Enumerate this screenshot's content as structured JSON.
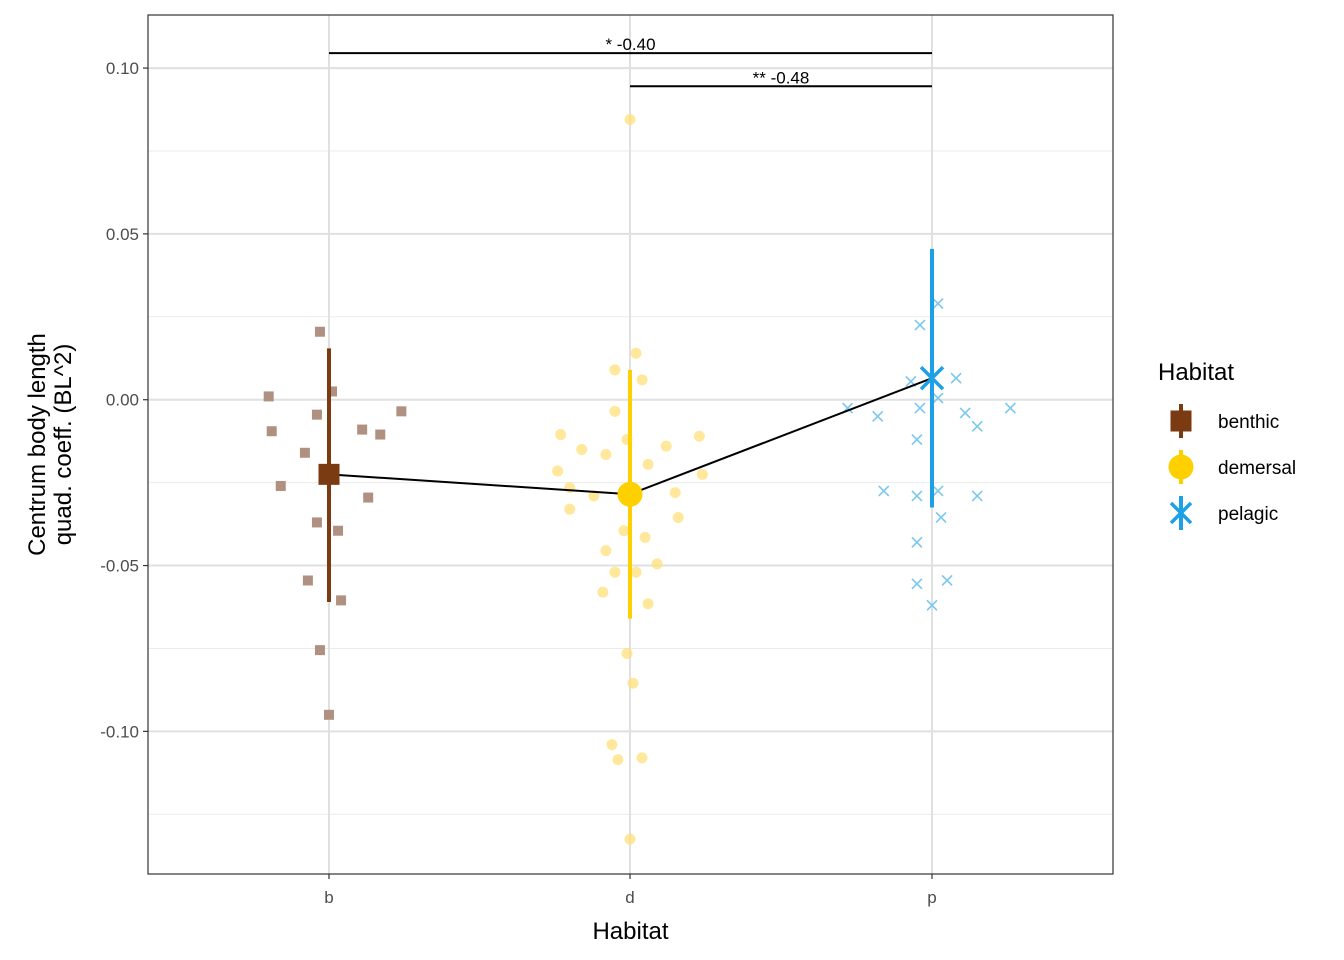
{
  "chart_data": {
    "type": "scatter",
    "title": "",
    "xlabel": "Habitat",
    "ylabel_lines": [
      "Centrum body length",
      "quad. coeff. (BL^2)"
    ],
    "categories": [
      "b",
      "d",
      "p"
    ],
    "ylim": [
      -0.143,
      0.116
    ],
    "y_ticks": [
      0.1,
      0.05,
      0.0,
      -0.05,
      -0.1
    ],
    "y_tick_labels": [
      "0.10",
      "0.05",
      "0.00",
      "-0.05",
      "-0.10"
    ],
    "grid": true,
    "legend": {
      "title": "Habitat",
      "position": "right",
      "entries": [
        "benthic",
        "demersal",
        "pelagic"
      ]
    },
    "colors": {
      "benthic": "#7a3a12",
      "demersal": "#ffd000",
      "pelagic": "#1ea0e6",
      "benthic_points": "#b09080",
      "demersal_points": "#ffe07a",
      "pelagic_points": "#7ac8ee"
    },
    "series": [
      {
        "name": "benthic",
        "category": "b",
        "marker": "square",
        "mean": -0.0225,
        "ci": [
          -0.061,
          0.0155
        ],
        "points": [
          [
            -0.2,
            0.001
          ],
          [
            -0.19,
            -0.0095
          ],
          [
            -0.08,
            -0.016
          ],
          [
            -0.16,
            -0.026
          ],
          [
            -0.04,
            -0.0045
          ],
          [
            -0.03,
            0.0205
          ],
          [
            0.01,
            0.0025
          ],
          [
            -0.04,
            -0.037
          ],
          [
            -0.07,
            -0.0545
          ],
          [
            0.03,
            -0.0395
          ],
          [
            0.11,
            -0.009
          ],
          [
            0.13,
            -0.0295
          ],
          [
            0.17,
            -0.0105
          ],
          [
            0.24,
            -0.0035
          ],
          [
            0.04,
            -0.0605
          ],
          [
            -0.03,
            -0.0755
          ],
          [
            0.0,
            -0.095
          ]
        ]
      },
      {
        "name": "demersal",
        "category": "d",
        "marker": "circle",
        "mean": -0.0285,
        "ci": [
          -0.066,
          0.009
        ],
        "points": [
          [
            0.0,
            0.0845
          ],
          [
            0.02,
            0.014
          ],
          [
            -0.05,
            0.009
          ],
          [
            0.04,
            0.006
          ],
          [
            -0.05,
            -0.0035
          ],
          [
            -0.23,
            -0.0105
          ],
          [
            0.23,
            -0.011
          ],
          [
            0.12,
            -0.014
          ],
          [
            -0.16,
            -0.015
          ],
          [
            -0.08,
            -0.0165
          ],
          [
            -0.01,
            -0.012
          ],
          [
            0.06,
            -0.0195
          ],
          [
            -0.24,
            -0.0215
          ],
          [
            0.24,
            -0.0225
          ],
          [
            -0.2,
            -0.0265
          ],
          [
            -0.12,
            -0.029
          ],
          [
            0.15,
            -0.028
          ],
          [
            -0.2,
            -0.033
          ],
          [
            0.16,
            -0.0355
          ],
          [
            -0.02,
            -0.0395
          ],
          [
            0.05,
            -0.0415
          ],
          [
            -0.08,
            -0.0455
          ],
          [
            0.09,
            -0.0495
          ],
          [
            -0.05,
            -0.052
          ],
          [
            0.02,
            -0.052
          ],
          [
            -0.09,
            -0.058
          ],
          [
            0.06,
            -0.0615
          ],
          [
            -0.01,
            -0.0765
          ],
          [
            0.01,
            -0.0855
          ],
          [
            -0.06,
            -0.104
          ],
          [
            -0.04,
            -0.1085
          ],
          [
            0.04,
            -0.108
          ],
          [
            0.0,
            -0.1325
          ]
        ]
      },
      {
        "name": "pelagic",
        "category": "p",
        "marker": "x",
        "mean": 0.0065,
        "ci": [
          -0.0325,
          0.0455
        ],
        "points": [
          [
            0.02,
            0.029
          ],
          [
            -0.04,
            0.0225
          ],
          [
            -0.07,
            0.0055
          ],
          [
            0.08,
            0.0065
          ],
          [
            0.02,
            0.0005
          ],
          [
            -0.28,
            -0.0025
          ],
          [
            -0.04,
            -0.0025
          ],
          [
            0.11,
            -0.004
          ],
          [
            0.26,
            -0.0025
          ],
          [
            -0.18,
            -0.005
          ],
          [
            0.15,
            -0.008
          ],
          [
            -0.05,
            -0.012
          ],
          [
            -0.16,
            -0.0275
          ],
          [
            -0.05,
            -0.029
          ],
          [
            0.02,
            -0.0275
          ],
          [
            0.15,
            -0.029
          ],
          [
            0.03,
            -0.0355
          ],
          [
            -0.05,
            -0.043
          ],
          [
            0.05,
            -0.0545
          ],
          [
            -0.05,
            -0.0555
          ],
          [
            0.0,
            -0.062
          ]
        ]
      }
    ],
    "significance": [
      {
        "from": "b",
        "to": "p",
        "y": 0.1045,
        "label": "* -0.40"
      },
      {
        "from": "d",
        "to": "p",
        "y": 0.0945,
        "label": "** -0.48"
      }
    ]
  }
}
